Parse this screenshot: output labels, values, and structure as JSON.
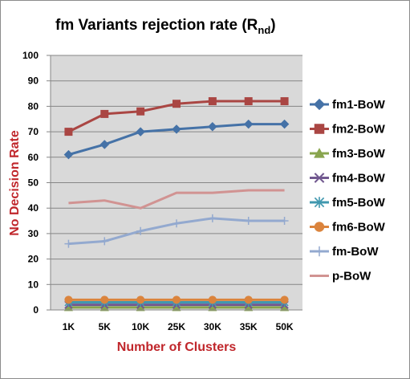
{
  "chart_data": {
    "type": "line",
    "title": "fm Variants  rejection rate (R",
    "title_subscript": "nd",
    "title_suffix": ")",
    "xlabel": "Number of Clusters",
    "ylabel": "No Decision Rate",
    "categories": [
      "1K",
      "5K",
      "10K",
      "25K",
      "30K",
      "35K",
      "50K"
    ],
    "ylim": [
      0,
      100
    ],
    "yticks": [
      0,
      10,
      20,
      30,
      40,
      50,
      60,
      70,
      80,
      90,
      100
    ],
    "grid": true,
    "legend_position": "right",
    "series": [
      {
        "name": "fm1-BoW",
        "color": "#4572a7",
        "marker": "diamond",
        "values": [
          61,
          65,
          70,
          71,
          72,
          73,
          73
        ]
      },
      {
        "name": "fm2-BoW",
        "color": "#aa4643",
        "marker": "square",
        "values": [
          70,
          77,
          78,
          81,
          82,
          82,
          82
        ]
      },
      {
        "name": "fm3-BoW",
        "color": "#89a54e",
        "marker": "triangle",
        "values": [
          1,
          1,
          1,
          1,
          1,
          1,
          1
        ]
      },
      {
        "name": "fm4-BoW",
        "color": "#71588f",
        "marker": "x",
        "values": [
          2,
          2,
          2,
          2,
          2,
          2,
          2
        ]
      },
      {
        "name": "fm5-BoW",
        "color": "#4198af",
        "marker": "star",
        "values": [
          3,
          3,
          3,
          3,
          3,
          3,
          3
        ]
      },
      {
        "name": "fm6-BoW",
        "color": "#db843d",
        "marker": "circle",
        "values": [
          4,
          4,
          4,
          4,
          4,
          4,
          4
        ]
      },
      {
        "name": "fm-BoW",
        "color": "#93a9cf",
        "marker": "plus",
        "values": [
          26,
          27,
          31,
          34,
          36,
          35,
          35
        ]
      },
      {
        "name": "p-BoW",
        "color": "#d19392",
        "marker": "none",
        "values": [
          42,
          43,
          40,
          46,
          46,
          47,
          47
        ]
      }
    ]
  }
}
